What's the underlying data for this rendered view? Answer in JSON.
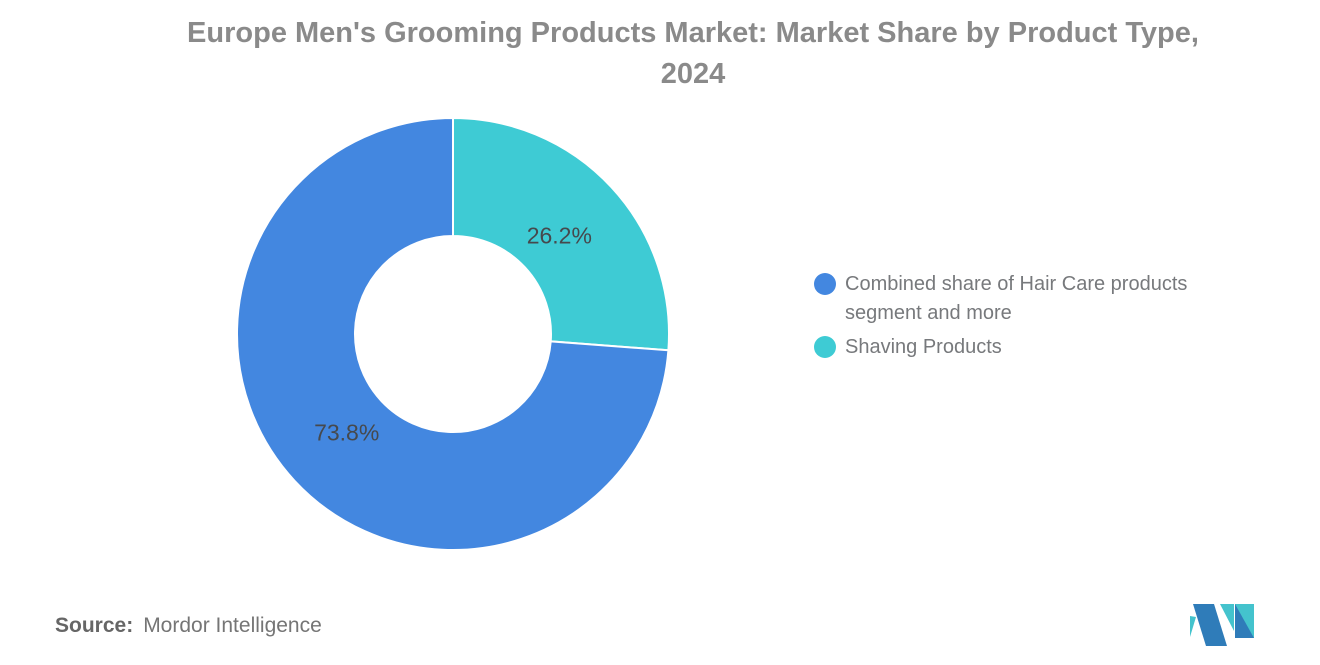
{
  "title": {
    "line1": "Europe Men's Grooming Products Market: Market Share by Product Type,",
    "line2": "2024"
  },
  "chart_data": {
    "type": "pie",
    "subtype": "donut",
    "title": "Europe Men's Grooming Products Market: Market Share by Product Type, 2024",
    "series": [
      {
        "name": "Combined share of Hair Care products segment and more",
        "value": 73.8,
        "color": "#4387E0"
      },
      {
        "name": "Shaving Products",
        "value": 26.2,
        "color": "#3ECBD4"
      }
    ],
    "start_angle_deg": 0,
    "direction": "clockwise",
    "inner_radius_pct": 45,
    "value_label_format": "{value}%",
    "value_labels": [
      "73.8%",
      "26.2%"
    ],
    "legend_position": "right",
    "slice_border_color": "#ffffff"
  },
  "source": {
    "label": "Source:",
    "value": "Mordor Intelligence"
  },
  "logo": {
    "name": "Mordor Intelligence logo mark",
    "blue": "#2F7CB9",
    "teal": "#44C3CD"
  }
}
